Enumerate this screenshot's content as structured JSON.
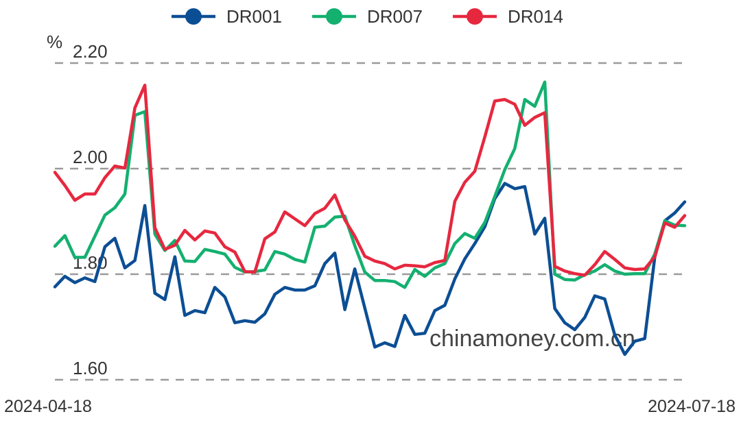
{
  "chart_data": {
    "type": "line",
    "unit": "%",
    "ylim": [
      1.6,
      2.2
    ],
    "yticks": [
      "2.20",
      "2.00",
      "1.80",
      "1.60"
    ],
    "ytick_values": [
      2.2,
      2.0,
      1.8,
      1.6
    ],
    "grid": true,
    "legend_position": "top-center",
    "x_start_label": "2024-04-18",
    "x_end_label": "2024-07-18",
    "watermark": "chinamoney.com.cn",
    "series": [
      {
        "name": "DR001",
        "color": "#0c4e94",
        "values": [
          1.776,
          1.796,
          1.784,
          1.793,
          1.786,
          1.852,
          1.868,
          1.812,
          1.826,
          1.93,
          1.764,
          1.752,
          1.833,
          1.722,
          1.731,
          1.727,
          1.775,
          1.757,
          1.708,
          1.712,
          1.709,
          1.725,
          1.762,
          1.775,
          1.77,
          1.77,
          1.778,
          1.82,
          1.84,
          1.733,
          1.81,
          1.736,
          1.662,
          1.67,
          1.663,
          1.722,
          1.686,
          1.688,
          1.731,
          1.741,
          1.791,
          1.829,
          1.858,
          1.89,
          1.943,
          1.972,
          1.962,
          1.966,
          1.876,
          1.906,
          1.735,
          1.708,
          1.695,
          1.718,
          1.759,
          1.753,
          1.685,
          1.648,
          1.673,
          1.678,
          1.832,
          1.901,
          1.916,
          1.937
        ]
      },
      {
        "name": "DR007",
        "color": "#14b070",
        "values": [
          1.853,
          1.873,
          1.832,
          1.832,
          1.872,
          1.912,
          1.926,
          1.952,
          2.101,
          2.108,
          1.876,
          1.845,
          1.864,
          1.825,
          1.824,
          1.847,
          1.843,
          1.838,
          1.813,
          1.804,
          1.805,
          1.808,
          1.843,
          1.838,
          1.828,
          1.823,
          1.889,
          1.891,
          1.908,
          1.91,
          1.854,
          1.804,
          1.788,
          1.788,
          1.786,
          1.775,
          1.809,
          1.796,
          1.812,
          1.82,
          1.858,
          1.877,
          1.868,
          1.898,
          1.947,
          1.998,
          2.038,
          2.131,
          2.118,
          2.164,
          1.8,
          1.79,
          1.789,
          1.799,
          1.806,
          1.818,
          1.806,
          1.8,
          1.801,
          1.801,
          1.838,
          1.901,
          1.893,
          1.892
        ]
      },
      {
        "name": "DR014",
        "color": "#e6283f",
        "values": [
          1.993,
          1.968,
          1.94,
          1.952,
          1.952,
          1.983,
          2.005,
          2.001,
          2.115,
          2.158,
          1.888,
          1.847,
          1.855,
          1.883,
          1.865,
          1.882,
          1.878,
          1.852,
          1.842,
          1.805,
          1.804,
          1.867,
          1.88,
          1.918,
          1.905,
          1.892,
          1.915,
          1.925,
          1.95,
          1.903,
          1.872,
          1.834,
          1.825,
          1.82,
          1.81,
          1.817,
          1.816,
          1.814,
          1.822,
          1.826,
          1.938,
          1.974,
          1.995,
          2.06,
          2.128,
          2.131,
          2.122,
          2.082,
          2.097,
          2.106,
          1.815,
          1.806,
          1.801,
          1.798,
          1.818,
          1.843,
          1.828,
          1.812,
          1.809,
          1.81,
          1.833,
          1.897,
          1.889,
          1.911
        ]
      }
    ]
  }
}
